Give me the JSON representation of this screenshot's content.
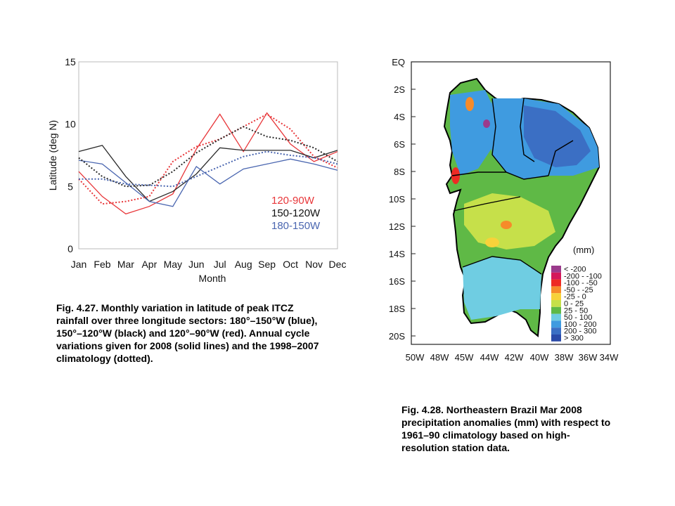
{
  "chart_data": {
    "type": "line",
    "ylabel": "Latitude (deg N)",
    "xlabel": "Month",
    "ylim": [
      0,
      15
    ],
    "yticks": [
      0,
      5,
      10,
      15
    ],
    "categories": [
      "Jan",
      "Feb",
      "Mar",
      "Apr",
      "May",
      "Jun",
      "Jul",
      "Aug",
      "Sep",
      "Oct",
      "Nov",
      "Dec"
    ],
    "grid": false,
    "legend_position": "bottom-right",
    "series": [
      {
        "name": "120-90W",
        "color": "#e8373a",
        "style": "solid",
        "values": [
          6.2,
          4.2,
          2.8,
          3.4,
          4.4,
          8.0,
          10.8,
          7.8,
          10.9,
          8.4,
          7.0,
          7.8
        ]
      },
      {
        "name": "150-120W",
        "color": "#2b2b2b",
        "style": "solid",
        "values": [
          7.8,
          8.3,
          5.8,
          3.8,
          4.6,
          6.0,
          8.1,
          7.9,
          7.9,
          7.9,
          7.3,
          7.9
        ]
      },
      {
        "name": "180-150W",
        "color": "#4a66b0",
        "style": "solid",
        "values": [
          7.1,
          6.8,
          5.3,
          3.8,
          3.4,
          6.6,
          5.2,
          6.4,
          6.8,
          7.2,
          6.8,
          6.3
        ]
      },
      {
        "name": "120-90W",
        "color": "#e8373a",
        "style": "dotted",
        "values": [
          5.6,
          3.6,
          3.8,
          4.2,
          7.0,
          8.2,
          8.8,
          9.8,
          10.8,
          9.6,
          7.4,
          6.5
        ]
      },
      {
        "name": "150-120W",
        "color": "#2b2b2b",
        "style": "dotted",
        "values": [
          7.3,
          5.8,
          5.0,
          5.1,
          6.2,
          7.7,
          8.8,
          9.8,
          9.0,
          8.7,
          8.1,
          7.0
        ]
      },
      {
        "name": "180-150W",
        "color": "#4a66b0",
        "style": "dotted",
        "values": [
          5.6,
          5.6,
          5.2,
          5.1,
          5.0,
          5.8,
          6.6,
          7.4,
          7.8,
          7.5,
          7.3,
          6.8
        ]
      }
    ],
    "legend": [
      {
        "label": "120-90W",
        "color": "#e8373a"
      },
      {
        "label": "150-120W",
        "color": "#111111"
      },
      {
        "label": "180-150W",
        "color": "#4a66b0"
      }
    ]
  },
  "caption_left": "Fig. 4.27. Monthly variation in latitude of peak ITCZ rainfall over three longitude sectors: 180°–150°W (blue), 150°–120°W (black) and 120°–90°W (red). Annual cycle variations given for 2008 (solid lines) and the 1998–2007 climatology (dotted).",
  "caption_right": "Fig. 4.28. Northeastern Brazil Mar 2008 precipitation anomalies (mm) with respect to 1961–90 climatology based on high-resolution station data.",
  "map": {
    "lat_labels": [
      "EQ",
      "2S",
      "4S",
      "6S",
      "8S",
      "10S",
      "12S",
      "14S",
      "16S",
      "18S",
      "20S"
    ],
    "lon_labels": [
      "50W",
      "48W",
      "45W",
      "44W",
      "42W",
      "40W",
      "38W",
      "36W",
      "34W"
    ],
    "legend_title": "(mm)",
    "legend": [
      {
        "label": "<  -200",
        "color": "#9b3a8c"
      },
      {
        "label": "-200 - -100",
        "color": "#d4185a"
      },
      {
        "label": "-100 - -50",
        "color": "#ee2a24"
      },
      {
        "label": "-50 - -25",
        "color": "#f68b2a"
      },
      {
        "label": "-25 - 0",
        "color": "#f7d23a"
      },
      {
        "label": "0 - 25",
        "color": "#c6e04a"
      },
      {
        "label": "25 - 50",
        "color": "#5fb946"
      },
      {
        "label": "50 - 100",
        "color": "#6fcde2"
      },
      {
        "label": "100 - 200",
        "color": "#3f9be0"
      },
      {
        "label": "200 - 300",
        "color": "#3b6fc4"
      },
      {
        "label": ">  300",
        "color": "#2a4aa8"
      }
    ]
  }
}
